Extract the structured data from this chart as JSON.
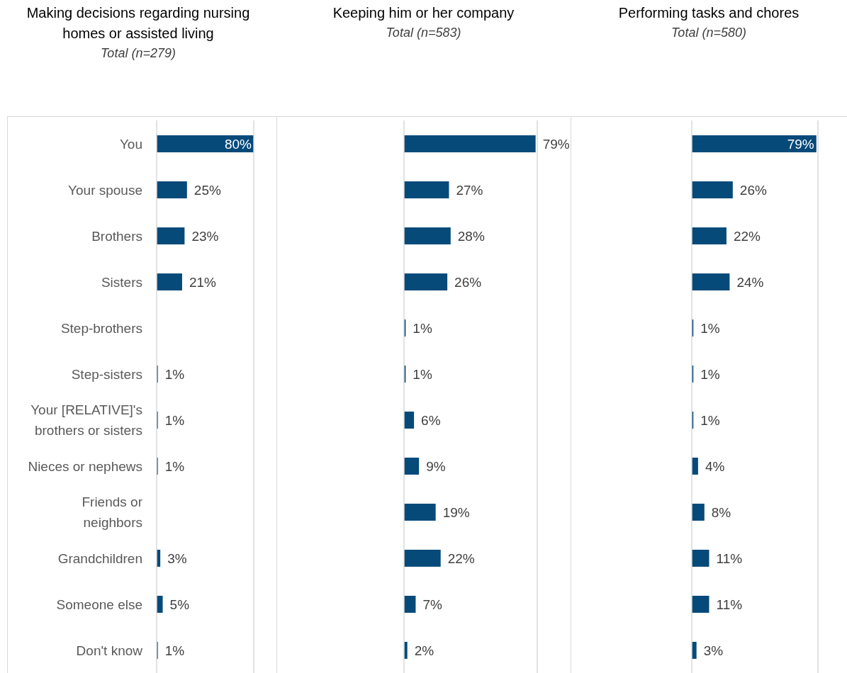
{
  "chart_data": [
    {
      "type": "bar",
      "orientation": "horizontal",
      "title": "Making decisions regarding nursing homes or assisted living",
      "subtitle": "Total (n=279)",
      "categories": [
        "You",
        "Your spouse",
        "Brothers",
        "Sisters",
        "Step-brothers",
        "Step-sisters",
        "Your [RELATIVE]'s brothers or sisters",
        "Nieces or nephews",
        "Friends or neighbors",
        "Grandchildren",
        "Someone else",
        "Don't know"
      ],
      "values": [
        80,
        25,
        23,
        21,
        null,
        1,
        1,
        1,
        null,
        3,
        5,
        1
      ],
      "value_labels": [
        "80%",
        "25%",
        "23%",
        "21%",
        null,
        "1%",
        "1%",
        "1%",
        null,
        "3%",
        "5%",
        "1%"
      ],
      "color": "#064a7a",
      "xlim": [
        0,
        80
      ],
      "ref_lines": [
        {
          "axis": "x",
          "value": 80,
          "color": "#d9d9d9"
        }
      ],
      "tick_labels": "y"
    },
    {
      "type": "bar",
      "orientation": "horizontal",
      "title": "Keeping him or her company",
      "subtitle": "Total (n=583)",
      "categories": [
        null,
        null,
        null,
        null,
        null,
        null,
        null,
        null,
        null,
        null,
        null,
        null
      ],
      "values": [
        79,
        27,
        28,
        26,
        1,
        1,
        6,
        9,
        19,
        22,
        7,
        2
      ],
      "value_labels": [
        "79%",
        "27%",
        "28%",
        "26%",
        "1%",
        "1%",
        "6%",
        "9%",
        "19%",
        "22%",
        "7%",
        "2%"
      ],
      "color": "#064a7a",
      "xlim": [
        0,
        80
      ],
      "ref_lines": [
        {
          "axis": "x",
          "value": 80,
          "color": "#d9d9d9"
        }
      ],
      "tick_labels": false
    },
    {
      "type": "bar",
      "orientation": "horizontal",
      "title": "Performing tasks and chores",
      "subtitle": "Total (n=580)",
      "categories": [
        null,
        null,
        null,
        null,
        null,
        null,
        null,
        null,
        null,
        null,
        null,
        null
      ],
      "values": [
        79,
        26,
        22,
        24,
        1,
        1,
        1,
        4,
        8,
        11,
        11,
        3
      ],
      "value_labels": [
        "79%",
        "26%",
        "22%",
        "24%",
        "1%",
        "1%",
        "1%",
        "4%",
        "8%",
        "11%",
        "11%",
        "3%"
      ],
      "color": "#064a7a",
      "xlim": [
        0,
        80
      ],
      "ref_lines": [
        {
          "axis": "x",
          "value": 80,
          "color": "#d9d9d9"
        }
      ],
      "tick_labels": false
    }
  ]
}
